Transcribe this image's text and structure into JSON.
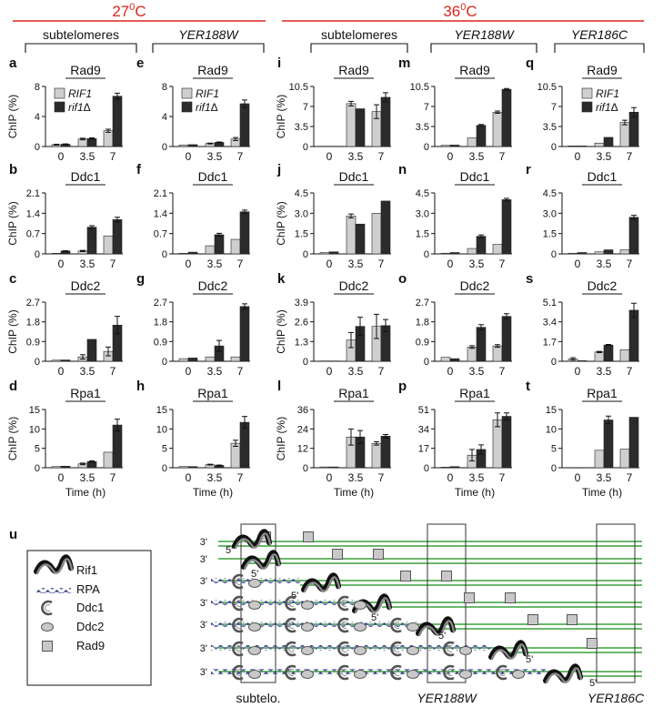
{
  "header": {
    "temp_left": "27",
    "temp_right": "36",
    "temp_unit": "C",
    "temp_sup": "0",
    "groups": [
      {
        "label": "subtelomeres",
        "italic": false
      },
      {
        "label": "YER188W",
        "italic": true
      },
      {
        "label": "subtelomeres",
        "italic": false
      },
      {
        "label": "YER188W",
        "italic": true
      },
      {
        "label": "YER186C",
        "italic": true
      }
    ]
  },
  "legend_top": {
    "wt": "RIF1",
    "mut": "rif1",
    "delta": "Δ"
  },
  "axis": {
    "ylabel": "ChIP (%)",
    "xlabel": "Time (h)"
  },
  "chart_data": [
    {
      "type": "bar",
      "panel": "a",
      "protein": "Rad9",
      "categories": [
        "0",
        "3.5",
        "7"
      ],
      "ylim": [
        0,
        8
      ],
      "yticks": [
        "0",
        "4",
        "8"
      ],
      "series": [
        {
          "name": "RIF1",
          "values": [
            0.25,
            1.0,
            2.1
          ],
          "errors": [
            0.05,
            0.1,
            0.2
          ]
        },
        {
          "name": "rif1Δ",
          "values": [
            0.3,
            1.05,
            6.7
          ],
          "errors": [
            0.05,
            0.1,
            0.4
          ]
        }
      ]
    },
    {
      "type": "bar",
      "panel": "b",
      "protein": "Ddc1",
      "categories": [
        "0",
        "3.5",
        "7"
      ],
      "ylim": [
        0,
        2.1
      ],
      "yticks": [
        "0",
        "0.7",
        "1.4",
        "2.1"
      ],
      "series": [
        {
          "name": "RIF1",
          "values": [
            0.02,
            0.1,
            0.62
          ],
          "errors": [
            0,
            0.02,
            0
          ]
        },
        {
          "name": "rif1Δ",
          "values": [
            0.1,
            0.92,
            1.18
          ],
          "errors": [
            0.01,
            0.05,
            0.08
          ]
        }
      ]
    },
    {
      "type": "bar",
      "panel": "c",
      "protein": "Ddc2",
      "categories": [
        "0",
        "3.5",
        "7"
      ],
      "ylim": [
        0,
        2.7
      ],
      "yticks": [
        "0",
        "0.9",
        "1.8",
        "2.7"
      ],
      "series": [
        {
          "name": "RIF1",
          "values": [
            0.05,
            0.2,
            0.45
          ],
          "errors": [
            0,
            0.1,
            0.2
          ]
        },
        {
          "name": "rif1Δ",
          "values": [
            0.06,
            1.0,
            1.65
          ],
          "errors": [
            0,
            0,
            0.4
          ]
        }
      ]
    },
    {
      "type": "bar",
      "panel": "d",
      "protein": "Rpa1",
      "categories": [
        "0",
        "3.5",
        "7"
      ],
      "ylim": [
        0,
        15
      ],
      "yticks": [
        "0",
        "5",
        "10",
        "15"
      ],
      "series": [
        {
          "name": "RIF1",
          "values": [
            0.3,
            1.0,
            4.0
          ],
          "errors": [
            0,
            0.2,
            0
          ]
        },
        {
          "name": "rif1Δ",
          "values": [
            0.4,
            1.6,
            11.0
          ],
          "errors": [
            0,
            0.2,
            1.5
          ]
        }
      ]
    },
    {
      "type": "bar",
      "panel": "e",
      "protein": "Rad9",
      "categories": [
        "0",
        "3.5",
        "7"
      ],
      "ylim": [
        0,
        8
      ],
      "yticks": [
        "0",
        "4",
        "8"
      ],
      "series": [
        {
          "name": "RIF1",
          "values": [
            0.2,
            0.4,
            1.0
          ],
          "errors": [
            0,
            0.05,
            0.2
          ]
        },
        {
          "name": "rif1Δ",
          "values": [
            0.25,
            0.55,
            5.7
          ],
          "errors": [
            0,
            0.05,
            0.5
          ]
        }
      ]
    },
    {
      "type": "bar",
      "panel": "f",
      "protein": "Ddc1",
      "categories": [
        "0",
        "3.5",
        "7"
      ],
      "ylim": [
        0,
        2.1
      ],
      "yticks": [
        "0",
        "0.7",
        "1.4",
        "2.1"
      ],
      "series": [
        {
          "name": "RIF1",
          "values": [
            0.02,
            0.28,
            0.5
          ],
          "errors": [
            0,
            0,
            0
          ]
        },
        {
          "name": "rif1Δ",
          "values": [
            0.06,
            0.66,
            1.45
          ],
          "errors": [
            0,
            0.05,
            0.06
          ]
        }
      ]
    },
    {
      "type": "bar",
      "panel": "g",
      "protein": "Ddc2",
      "categories": [
        "0",
        "3.5",
        "7"
      ],
      "ylim": [
        0,
        2.7
      ],
      "yticks": [
        "0",
        "0.9",
        "1.8",
        "2.7"
      ],
      "series": [
        {
          "name": "RIF1",
          "values": [
            0.12,
            0.2,
            0.2
          ],
          "errors": [
            0,
            0,
            0
          ]
        },
        {
          "name": "rif1Δ",
          "values": [
            0.15,
            0.7,
            2.5
          ],
          "errors": [
            0,
            0.25,
            0.12
          ]
        }
      ]
    },
    {
      "type": "bar",
      "panel": "h",
      "protein": "Rpa1",
      "categories": [
        "0",
        "3.5",
        "7"
      ],
      "ylim": [
        0,
        15
      ],
      "yticks": [
        "0",
        "5",
        "10",
        "15"
      ],
      "series": [
        {
          "name": "RIF1",
          "values": [
            0.3,
            0.8,
            6.3
          ],
          "errors": [
            0,
            0.1,
            0.8
          ]
        },
        {
          "name": "rif1Δ",
          "values": [
            0.3,
            0.6,
            11.7
          ],
          "errors": [
            0,
            0.1,
            1.5
          ]
        }
      ]
    },
    {
      "type": "bar",
      "panel": "i",
      "protein": "Rad9",
      "categories": [
        "0",
        "3.5",
        "7"
      ],
      "ylim": [
        0,
        10.5
      ],
      "yticks": [
        "0",
        "3.5",
        "7",
        "10.5"
      ],
      "series": [
        {
          "name": "RIF1",
          "values": [
            0.05,
            7.5,
            6.1
          ],
          "errors": [
            0,
            0.4,
            1.2
          ]
        },
        {
          "name": "rif1Δ",
          "values": [
            0.05,
            6.6,
            8.6
          ],
          "errors": [
            0,
            0,
            0.8
          ]
        }
      ]
    },
    {
      "type": "bar",
      "panel": "j",
      "protein": "Ddc1",
      "categories": [
        "0",
        "3.5",
        "7"
      ],
      "ylim": [
        0,
        4.5
      ],
      "yticks": [
        "0",
        "1.5",
        "3.0",
        "4.5"
      ],
      "series": [
        {
          "name": "RIF1",
          "values": [
            0.1,
            2.8,
            3.0
          ],
          "errors": [
            0,
            0.15,
            0
          ]
        },
        {
          "name": "rif1Δ",
          "values": [
            0.15,
            2.2,
            3.9
          ],
          "errors": [
            0,
            0,
            0
          ]
        }
      ]
    },
    {
      "type": "bar",
      "panel": "k",
      "protein": "Ddc2",
      "categories": [
        "0",
        "3.5",
        "7"
      ],
      "ylim": [
        0,
        3.9
      ],
      "yticks": [
        "0",
        "1.3",
        "2.6",
        "3.9"
      ],
      "series": [
        {
          "name": "RIF1",
          "values": [
            0.02,
            1.4,
            2.3
          ],
          "errors": [
            0,
            0.5,
            0.8
          ]
        },
        {
          "name": "rif1Δ",
          "values": [
            0.02,
            2.3,
            2.35
          ],
          "errors": [
            0,
            0.6,
            0.4
          ]
        }
      ]
    },
    {
      "type": "bar",
      "panel": "l",
      "protein": "Rpa1",
      "categories": [
        "0",
        "3.5",
        "7"
      ],
      "ylim": [
        0,
        36
      ],
      "yticks": [
        "0",
        "12",
        "24",
        "36"
      ],
      "series": [
        {
          "name": "RIF1",
          "values": [
            0.5,
            19,
            15
          ],
          "errors": [
            0,
            5,
            1
          ]
        },
        {
          "name": "rif1Δ",
          "values": [
            0.5,
            19,
            19.5
          ],
          "errors": [
            0,
            4,
            1
          ]
        }
      ]
    },
    {
      "type": "bar",
      "panel": "m",
      "protein": "Rad9",
      "categories": [
        "0",
        "3.5",
        "7"
      ],
      "ylim": [
        0,
        10.5
      ],
      "yticks": [
        "0",
        "3.5",
        "7",
        "10.5"
      ],
      "series": [
        {
          "name": "RIF1",
          "values": [
            0.2,
            1.5,
            6.0
          ],
          "errors": [
            0,
            0,
            0.2
          ]
        },
        {
          "name": "rif1Δ",
          "values": [
            0.25,
            3.7,
            10.0
          ],
          "errors": [
            0,
            0.15,
            0.15
          ]
        }
      ]
    },
    {
      "type": "bar",
      "panel": "n",
      "protein": "Ddc1",
      "categories": [
        "0",
        "3.5",
        "7"
      ],
      "ylim": [
        0,
        4.5
      ],
      "yticks": [
        "0",
        "1.5",
        "3.0",
        "4.5"
      ],
      "series": [
        {
          "name": "RIF1",
          "values": [
            0.05,
            0.4,
            0.7
          ],
          "errors": [
            0,
            0,
            0
          ]
        },
        {
          "name": "rif1Δ",
          "values": [
            0.1,
            1.3,
            4.0
          ],
          "errors": [
            0,
            0.1,
            0.1
          ]
        }
      ]
    },
    {
      "type": "bar",
      "panel": "o",
      "protein": "Ddc2",
      "categories": [
        "0",
        "3.5",
        "7"
      ],
      "ylim": [
        0,
        2.7
      ],
      "yticks": [
        "0",
        "0.9",
        "1.8",
        "2.7"
      ],
      "series": [
        {
          "name": "RIF1",
          "values": [
            0.18,
            0.65,
            0.7
          ],
          "errors": [
            0,
            0.06,
            0.06
          ]
        },
        {
          "name": "rif1Δ",
          "values": [
            0.12,
            1.55,
            2.05
          ],
          "errors": [
            0,
            0.12,
            0.12
          ]
        }
      ]
    },
    {
      "type": "bar",
      "panel": "p",
      "protein": "Rpa1",
      "categories": [
        "0",
        "3.5",
        "7"
      ],
      "ylim": [
        0,
        51
      ],
      "yticks": [
        "0",
        "17",
        "34",
        "51"
      ],
      "series": [
        {
          "name": "RIF1",
          "values": [
            0.5,
            11,
            42
          ],
          "errors": [
            0,
            5,
            6
          ]
        },
        {
          "name": "rif1Δ",
          "values": [
            1.0,
            16,
            45
          ],
          "errors": [
            0,
            4,
            3
          ]
        }
      ]
    },
    {
      "type": "bar",
      "panel": "q",
      "protein": "Rad9",
      "categories": [
        "0",
        "3.5",
        "7"
      ],
      "ylim": [
        0,
        10.5
      ],
      "yticks": [
        "0",
        "3.5",
        "7",
        "10.5"
      ],
      "series": [
        {
          "name": "RIF1",
          "values": [
            0.1,
            0.6,
            4.2
          ],
          "errors": [
            0,
            0,
            0.4
          ]
        },
        {
          "name": "rif1Δ",
          "values": [
            0.1,
            1.6,
            6.0
          ],
          "errors": [
            0,
            0,
            0.8
          ]
        }
      ]
    },
    {
      "type": "bar",
      "panel": "r",
      "protein": "Ddc1",
      "categories": [
        "0",
        "3.5",
        "7"
      ],
      "ylim": [
        0,
        4.5
      ],
      "yticks": [
        "0",
        "1.5",
        "3.0",
        "4.5"
      ],
      "series": [
        {
          "name": "RIF1",
          "values": [
            0.05,
            0.15,
            0.3
          ],
          "errors": [
            0,
            0,
            0
          ]
        },
        {
          "name": "rif1Δ",
          "values": [
            0.1,
            0.3,
            2.7
          ],
          "errors": [
            0,
            0,
            0.15
          ]
        }
      ]
    },
    {
      "type": "bar",
      "panel": "s",
      "protein": "Ddc2",
      "categories": [
        "0",
        "3.5",
        "7"
      ],
      "ylim": [
        0,
        5.1
      ],
      "yticks": [
        "0",
        "1.7",
        "3.4",
        "5.1"
      ],
      "series": [
        {
          "name": "RIF1",
          "values": [
            0.2,
            0.8,
            1.0
          ],
          "errors": [
            0.1,
            0.05,
            0
          ]
        },
        {
          "name": "rif1Δ",
          "values": [
            0.05,
            1.4,
            4.4
          ],
          "errors": [
            0,
            0.05,
            0.6
          ]
        }
      ]
    },
    {
      "type": "bar",
      "panel": "t",
      "protein": "Rpa1",
      "categories": [
        "0",
        "3.5",
        "7"
      ],
      "ylim": [
        0,
        15
      ],
      "yticks": [
        "0",
        "5",
        "10",
        "15"
      ],
      "series": [
        {
          "name": "RIF1",
          "values": [
            0.05,
            4.5,
            4.8
          ],
          "errors": [
            0,
            0,
            0
          ]
        },
        {
          "name": "rif1Δ",
          "values": [
            0.05,
            12.3,
            13.0
          ],
          "errors": [
            0,
            1.0,
            0
          ]
        }
      ]
    }
  ],
  "diagram": {
    "panel_letter": "u",
    "legend": [
      {
        "icon": "rif1-icon",
        "label": "Rif1"
      },
      {
        "icon": "rpa-icon",
        "label": "RPA"
      },
      {
        "icon": "ddc1-icon",
        "label": "Ddc1"
      },
      {
        "icon": "ddc2-icon",
        "label": "Ddc2"
      },
      {
        "icon": "rad9-icon",
        "label": "Rad9"
      }
    ],
    "three_prime": "3'",
    "five_prime": "5'",
    "regions": [
      "subtelo.",
      "YER188W",
      "YER186C"
    ],
    "strand_color": "#3aa13a"
  },
  "colors": {
    "temperature": "#d9261c",
    "wt_bar": "#cfcfcf",
    "mut_bar": "#2b2b2b"
  }
}
